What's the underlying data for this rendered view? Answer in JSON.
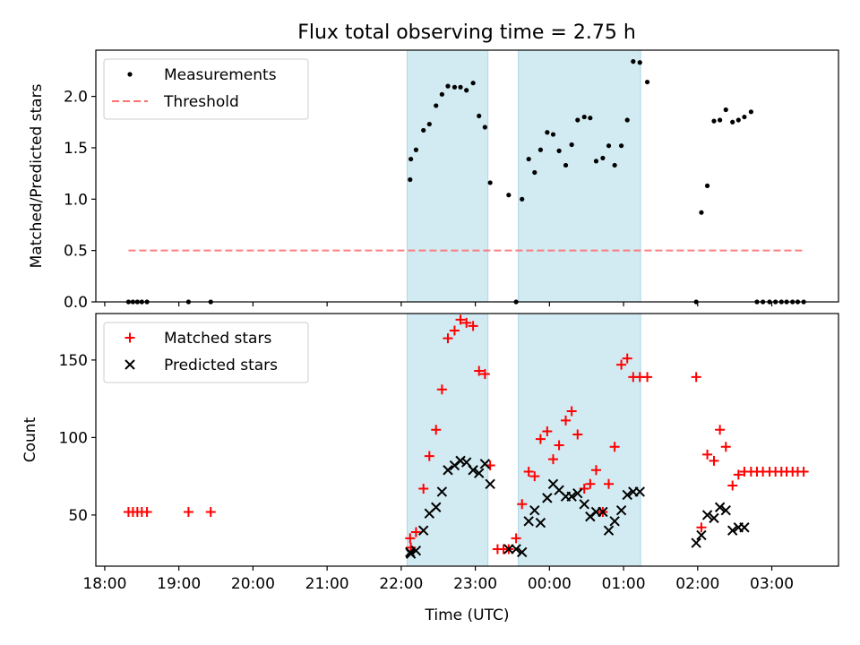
{
  "title": "Flux total observing time = 2.75 h",
  "colors": {
    "shade": "#add8e6",
    "threshold": "#ff7070",
    "matched": "#ff0000",
    "predicted": "#000000",
    "measure": "#000000"
  },
  "chart_data": [
    {
      "type": "scatter",
      "ylabel": "Matched/Predicted stars",
      "xlim": [
        -0.12,
        9.9
      ],
      "ylim": [
        0,
        2.45
      ],
      "yticks": [
        0.0,
        0.5,
        1.0,
        1.5,
        2.0
      ],
      "ytick_labels": [
        "0.0",
        "0.5",
        "1.0",
        "1.5",
        "2.0"
      ],
      "xticks": [
        0,
        1,
        2,
        3,
        4,
        5,
        6,
        7,
        8,
        9
      ],
      "shaded_ranges": [
        [
          4.08,
          5.17
        ],
        [
          5.58,
          7.23
        ]
      ],
      "legend_position": "upper-left",
      "series": [
        {
          "name": "Measurements",
          "marker": "dot",
          "x": [
            0.32,
            0.38,
            0.44,
            0.5,
            0.57,
            1.13,
            1.43,
            4.12,
            4.13,
            4.2,
            4.3,
            4.38,
            4.47,
            4.55,
            4.63,
            4.72,
            4.8,
            4.88,
            4.97,
            5.05,
            5.13,
            5.2,
            5.45,
            5.55,
            5.63,
            5.72,
            5.8,
            5.88,
            5.97,
            6.05,
            6.13,
            6.22,
            6.3,
            6.38,
            6.47,
            6.55,
            6.63,
            6.72,
            6.8,
            6.88,
            6.97,
            7.05,
            7.13,
            7.22,
            7.32,
            7.98,
            8.05,
            8.13,
            8.22,
            8.3,
            8.38,
            8.47,
            8.55,
            8.63,
            8.72,
            8.8,
            8.88,
            8.97,
            9.05,
            9.13,
            9.2,
            9.28,
            9.35,
            9.43
          ],
          "y": [
            0,
            0,
            0,
            0,
            0,
            0,
            0,
            1.19,
            1.39,
            1.48,
            1.67,
            1.73,
            1.91,
            2.02,
            2.1,
            2.09,
            2.09,
            2.06,
            2.13,
            1.81,
            1.7,
            1.16,
            1.04,
            0,
            1.0,
            1.39,
            1.26,
            1.48,
            1.65,
            1.63,
            1.47,
            1.33,
            1.53,
            1.77,
            1.8,
            1.79,
            1.37,
            1.4,
            1.52,
            1.33,
            1.52,
            1.77,
            2.34,
            2.33,
            2.14,
            0,
            0.87,
            1.13,
            1.76,
            1.77,
            1.87,
            1.75,
            1.77,
            1.8,
            1.85,
            0,
            0,
            0,
            0,
            0,
            0,
            0,
            0,
            0
          ]
        },
        {
          "name": "Threshold",
          "line": "dashed",
          "x": [
            0.32,
            9.43
          ],
          "y": [
            0.5,
            0.5
          ]
        }
      ]
    },
    {
      "type": "scatter",
      "xlabel": "Time (UTC)",
      "ylabel": "Count",
      "xlim": [
        -0.12,
        9.9
      ],
      "ylim": [
        17,
        180
      ],
      "yticks": [
        50,
        100,
        150
      ],
      "ytick_labels": [
        "50",
        "100",
        "150"
      ],
      "xticks": [
        0,
        1,
        2,
        3,
        4,
        5,
        6,
        7,
        8,
        9
      ],
      "xtick_labels": [
        "18:00",
        "19:00",
        "20:00",
        "21:00",
        "22:00",
        "23:00",
        "00:00",
        "01:00",
        "02:00",
        "03:00"
      ],
      "shaded_ranges": [
        [
          4.08,
          5.17
        ],
        [
          5.58,
          7.23
        ]
      ],
      "legend_position": "upper-left",
      "series": [
        {
          "name": "Matched stars",
          "marker": "plus",
          "x": [
            0.32,
            0.38,
            0.44,
            0.5,
            0.57,
            1.13,
            1.43,
            4.12,
            4.13,
            4.2,
            4.3,
            4.38,
            4.47,
            4.55,
            4.63,
            4.72,
            4.8,
            4.88,
            4.97,
            5.05,
            5.13,
            5.2,
            5.3,
            5.38,
            5.45,
            5.55,
            5.63,
            5.72,
            5.8,
            5.88,
            5.97,
            6.05,
            6.13,
            6.22,
            6.3,
            6.38,
            6.47,
            6.55,
            6.63,
            6.72,
            6.8,
            6.88,
            6.97,
            7.05,
            7.13,
            7.22,
            7.32,
            7.98,
            8.05,
            8.13,
            8.22,
            8.3,
            8.38,
            8.47,
            8.55,
            8.63,
            8.72,
            8.8,
            8.88,
            8.97,
            9.05,
            9.13,
            9.2,
            9.28,
            9.35,
            9.43
          ],
          "y": [
            52,
            52,
            52,
            52,
            52,
            52,
            52,
            35,
            29,
            39,
            67,
            88,
            105,
            131,
            164,
            169,
            176,
            174,
            172,
            143,
            141,
            82,
            28,
            28,
            28,
            35,
            57,
            78,
            75,
            99,
            104,
            86,
            95,
            111,
            117,
            102,
            67,
            70,
            79,
            52,
            70,
            94,
            147,
            151,
            139,
            139,
            139,
            139,
            42,
            89,
            85,
            105,
            94,
            69,
            76,
            78,
            78,
            78,
            78,
            78,
            78,
            78,
            78,
            78,
            78,
            78
          ]
        },
        {
          "name": "Predicted stars",
          "marker": "x",
          "x": [
            4.12,
            4.13,
            4.2,
            4.3,
            4.38,
            4.47,
            4.55,
            4.63,
            4.72,
            4.8,
            4.88,
            4.97,
            5.05,
            5.13,
            5.2,
            5.45,
            5.55,
            5.63,
            5.72,
            5.8,
            5.88,
            5.97,
            6.05,
            6.13,
            6.22,
            6.3,
            6.38,
            6.47,
            6.55,
            6.63,
            6.72,
            6.8,
            6.88,
            6.97,
            7.05,
            7.13,
            7.22,
            7.98,
            8.05,
            8.13,
            8.22,
            8.3,
            8.38,
            8.47,
            8.55,
            8.63
          ],
          "y": [
            26,
            25,
            27,
            40,
            51,
            55,
            65,
            79,
            82,
            85,
            84,
            79,
            77,
            83,
            70,
            28,
            28,
            26,
            46,
            53,
            45,
            61,
            70,
            66,
            62,
            62,
            64,
            57,
            49,
            52,
            52,
            40,
            46,
            53,
            63,
            65,
            65,
            32,
            37,
            50,
            48,
            55,
            53,
            40,
            42,
            42
          ]
        }
      ]
    }
  ]
}
